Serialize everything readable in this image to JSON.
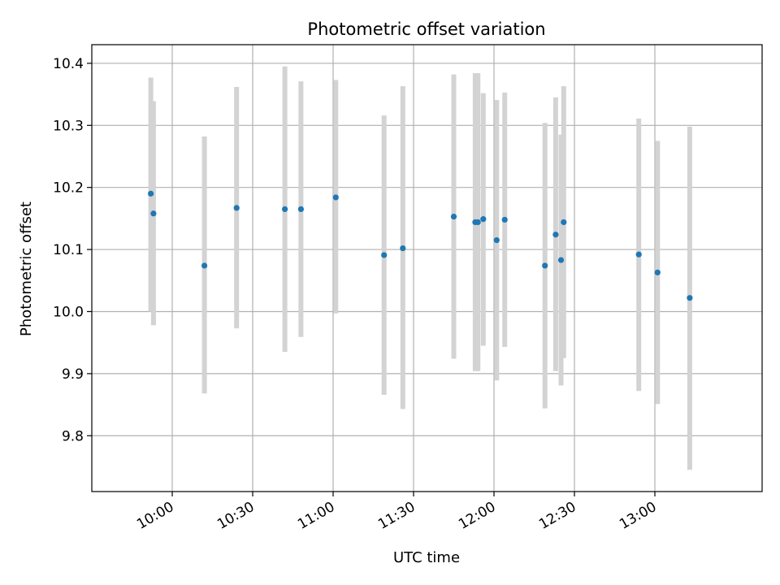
{
  "chart_data": {
    "type": "scatter",
    "title": "Photometric offset variation",
    "xlabel": "UTC time",
    "ylabel": "Photometric offset",
    "x_unit": "time",
    "xlim": [
      "09:30",
      "13:40"
    ],
    "ylim": [
      9.71,
      10.43
    ],
    "grid": true,
    "colors": {
      "point": "#1f77b4",
      "errorbar": "#d3d3d3"
    },
    "x_ticks": [
      "10:00",
      "10:30",
      "11:00",
      "11:30",
      "12:00",
      "12:30",
      "13:00"
    ],
    "y_ticks": [
      9.8,
      9.9,
      10.0,
      10.1,
      10.2,
      10.3,
      10.4
    ],
    "points": [
      {
        "x": "09:52",
        "y": 10.19,
        "low": 10.0,
        "high": 10.377
      },
      {
        "x": "09:53",
        "y": 10.158,
        "low": 9.978,
        "high": 10.339
      },
      {
        "x": "10:12",
        "y": 10.074,
        "low": 9.868,
        "high": 10.282
      },
      {
        "x": "10:24",
        "y": 10.167,
        "low": 9.973,
        "high": 10.362
      },
      {
        "x": "10:42",
        "y": 10.165,
        "low": 9.935,
        "high": 10.395
      },
      {
        "x": "10:48",
        "y": 10.165,
        "low": 9.959,
        "high": 10.371
      },
      {
        "x": "11:01",
        "y": 10.184,
        "low": 9.997,
        "high": 10.373
      },
      {
        "x": "11:19",
        "y": 10.091,
        "low": 9.866,
        "high": 10.316
      },
      {
        "x": "11:26",
        "y": 10.102,
        "low": 9.843,
        "high": 10.363
      },
      {
        "x": "11:45",
        "y": 10.153,
        "low": 9.924,
        "high": 10.382
      },
      {
        "x": "11:53",
        "y": 10.144,
        "low": 9.904,
        "high": 10.384
      },
      {
        "x": "11:54",
        "y": 10.144,
        "low": 9.904,
        "high": 10.384
      },
      {
        "x": "11:56",
        "y": 10.149,
        "low": 9.945,
        "high": 10.352
      },
      {
        "x": "12:01",
        "y": 10.115,
        "low": 9.889,
        "high": 10.341
      },
      {
        "x": "12:04",
        "y": 10.148,
        "low": 9.943,
        "high": 10.353
      },
      {
        "x": "12:19",
        "y": 10.074,
        "low": 9.844,
        "high": 10.304
      },
      {
        "x": "12:23",
        "y": 10.124,
        "low": 9.904,
        "high": 10.345
      },
      {
        "x": "12:25",
        "y": 10.083,
        "low": 9.881,
        "high": 10.285
      },
      {
        "x": "12:26",
        "y": 10.144,
        "low": 9.925,
        "high": 10.363
      },
      {
        "x": "12:54",
        "y": 10.092,
        "low": 9.872,
        "high": 10.311
      },
      {
        "x": "13:01",
        "y": 10.063,
        "low": 9.851,
        "high": 10.275
      },
      {
        "x": "13:13",
        "y": 10.022,
        "low": 9.745,
        "high": 10.298
      }
    ]
  }
}
